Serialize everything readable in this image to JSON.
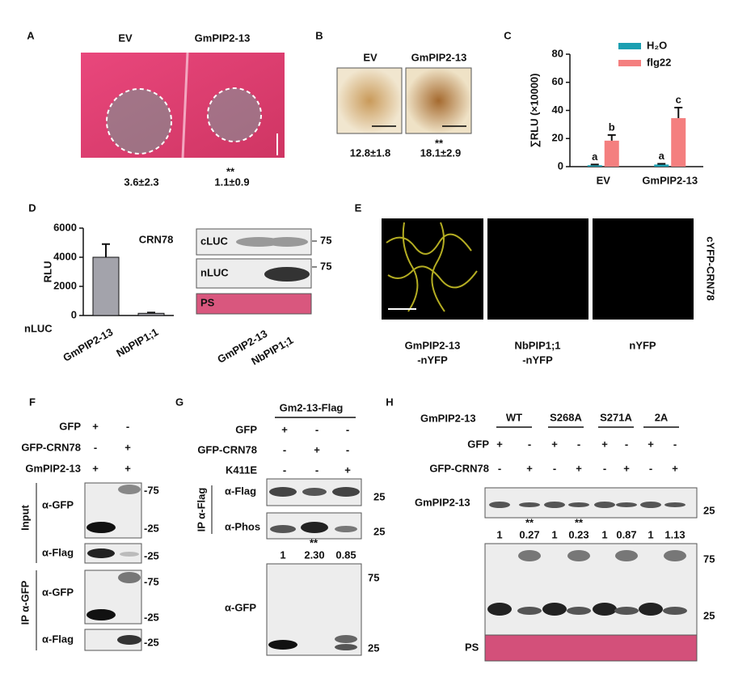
{
  "panel_a": {
    "letter": "A",
    "columns": [
      "EV",
      "GmPIP2-13"
    ],
    "measurements": [
      "3.6±2.3",
      "1.1±0.9"
    ],
    "significance": "**"
  },
  "panel_b": {
    "letter": "B",
    "columns": [
      "EV",
      "GmPIP2-13"
    ],
    "measurements": [
      "12.8±1.8",
      "18.1±2.9"
    ],
    "significance": "**"
  },
  "chart_data": [
    {
      "panel": "C",
      "type": "bar",
      "ylabel": "∑RLU (×10000)",
      "categories": [
        "EV",
        "GmPIP2-13"
      ],
      "series": [
        {
          "name": "H₂O",
          "color": "#1b9fb1",
          "values": [
            1,
            1.5
          ],
          "errors": [
            0.5,
            0.5
          ],
          "letters": [
            "a",
            "a"
          ]
        },
        {
          "name": "flg22",
          "color": "#f47f7f",
          "values": [
            18.5,
            34.5
          ],
          "errors": [
            4,
            7.5
          ],
          "letters": [
            "b",
            "c"
          ]
        }
      ],
      "ylim": [
        0,
        80
      ],
      "yticks": [
        0,
        20,
        40,
        60,
        80
      ],
      "legend": "upper right"
    },
    {
      "panel": "D",
      "type": "bar",
      "title": "CRN78",
      "ylabel": "RLU",
      "xlabel": "nLUC",
      "categories": [
        "GmPIP2-13",
        "NbPIP1;1"
      ],
      "values": [
        4000,
        150
      ],
      "errors": [
        900,
        50
      ],
      "color": "#a3a3ab",
      "ylim": [
        0,
        6000
      ],
      "yticks": [
        0,
        2000,
        4000,
        6000
      ]
    }
  ],
  "panel_d_blot": {
    "rows": [
      "cLUC",
      "nLUC",
      "PS"
    ],
    "markers": [
      "75",
      "75"
    ],
    "lanes": [
      "GmPIP2-13",
      "NbPIP1;1"
    ]
  },
  "panel_e": {
    "letter": "E",
    "side_label": "cYFP-CRN78",
    "columns": [
      [
        "GmPIP2-13",
        "-nYFP"
      ],
      [
        "NbPIP1;1",
        "-nYFP"
      ],
      [
        "nYFP"
      ]
    ]
  },
  "panel_f": {
    "letter": "F",
    "conditions": [
      {
        "name": "GFP",
        "marks": [
          "+",
          "-"
        ]
      },
      {
        "name": "GFP-CRN78",
        "marks": [
          "-",
          "+"
        ]
      },
      {
        "name": "GmPIP2-13",
        "marks": [
          "+",
          "+"
        ]
      }
    ],
    "sections": [
      "Input",
      "IP α-GFP"
    ],
    "blots": [
      "α-GFP",
      "α-Flag",
      "α-GFP",
      "α-Flag"
    ],
    "markers": [
      "-75",
      "-25",
      "-25",
      "-75",
      "-25",
      "-25"
    ]
  },
  "panel_g": {
    "letter": "G",
    "header": "Gm2-13-Flag",
    "conditions": [
      {
        "name": "GFP",
        "marks": [
          "+",
          "-",
          "-"
        ]
      },
      {
        "name": "GFP-CRN78",
        "marks": [
          "-",
          "+",
          "-"
        ]
      },
      {
        "name": "K411E",
        "marks": [
          "-",
          "-",
          "+"
        ]
      }
    ],
    "section": "IP α-Flag",
    "blots": [
      "α-Flag",
      "α-Phos",
      "α-GFP"
    ],
    "ratios": [
      "1",
      "2.30",
      "0.85"
    ],
    "significance": "**",
    "markers": [
      "25",
      "25",
      "75",
      "25"
    ]
  },
  "panel_h": {
    "letter": "H",
    "construct_label": "GmPIP2-13",
    "groups": [
      "WT",
      "S268A",
      "S271A",
      "2A"
    ],
    "conditions": [
      {
        "name": "GFP",
        "marks": [
          "+",
          "-",
          "+",
          "-",
          "+",
          "-",
          "+",
          "-"
        ]
      },
      {
        "name": "GFP-CRN78",
        "marks": [
          "-",
          "+",
          "-",
          "+",
          "-",
          "+",
          "-",
          "+"
        ]
      }
    ],
    "blots": [
      "GmPIP2-13",
      "PS"
    ],
    "ratios": [
      "1",
      "0.27",
      "1",
      "0.23",
      "1",
      "0.87",
      "1",
      "1.13"
    ],
    "significance": [
      "**",
      "**"
    ],
    "markers": [
      "25",
      "75",
      "25"
    ]
  }
}
